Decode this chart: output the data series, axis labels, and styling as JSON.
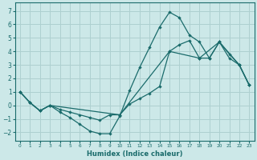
{
  "xlabel": "Humidex (Indice chaleur)",
  "background_color": "#cce8e8",
  "grid_color": "#aed0d0",
  "line_color": "#1a6b6b",
  "xlim": [
    -0.5,
    23.5
  ],
  "ylim": [
    -2.6,
    7.6
  ],
  "xticks": [
    0,
    1,
    2,
    3,
    4,
    5,
    6,
    7,
    8,
    9,
    10,
    11,
    12,
    13,
    14,
    15,
    16,
    17,
    18,
    19,
    20,
    21,
    22,
    23
  ],
  "yticks": [
    -2,
    -1,
    0,
    1,
    2,
    3,
    4,
    5,
    6,
    7
  ],
  "curve1_x": [
    0,
    1,
    2,
    3,
    4,
    5,
    6,
    7,
    8,
    9,
    10,
    11,
    12,
    13,
    14,
    15,
    16,
    17,
    18,
    19,
    20,
    21,
    22,
    23
  ],
  "curve1_y": [
    1.0,
    0.2,
    -0.4,
    0.0,
    -0.5,
    -0.9,
    -1.4,
    -1.9,
    -2.1,
    -2.1,
    -0.8,
    1.1,
    2.8,
    4.3,
    5.8,
    6.9,
    6.5,
    5.2,
    4.7,
    3.5,
    4.7,
    3.8,
    3.0,
    1.5
  ],
  "curve2_x": [
    0,
    1,
    2,
    3,
    10,
    15,
    18,
    20,
    22,
    23
  ],
  "curve2_y": [
    1.0,
    0.2,
    -0.4,
    0.0,
    -0.7,
    4.0,
    3.5,
    4.7,
    3.0,
    1.5
  ],
  "curve3_x": [
    0,
    1,
    2,
    3,
    4,
    5,
    6,
    7,
    8,
    9,
    10,
    11,
    12,
    13,
    14,
    15,
    16,
    17,
    18,
    19,
    20,
    21,
    22,
    23
  ],
  "curve3_y": [
    1.0,
    0.2,
    -0.4,
    0.0,
    -0.3,
    -0.5,
    -0.7,
    -0.9,
    -1.1,
    -0.7,
    -0.7,
    0.1,
    0.5,
    0.9,
    1.4,
    4.0,
    4.5,
    4.8,
    3.5,
    3.5,
    4.7,
    3.5,
    3.0,
    1.5
  ]
}
